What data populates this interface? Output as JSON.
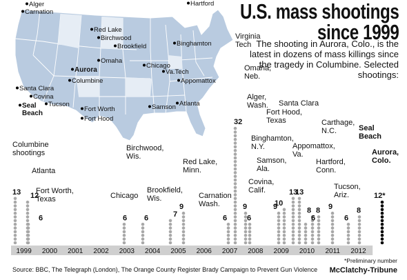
{
  "title_line1": "U.S. mass shootings",
  "title_line2": "since 1999",
  "subtitle": "The shooting in Aurora, Colo., is the latest in dozens of mass killings since the tragedy in Columbine. Selected shootings:",
  "source": "Source: BBC, The Telegraph (London), The Orange County Register Brady Campaign to Prevent Gun Violence",
  "credit": "McClatchy-Tribune",
  "footnote": "*Preliminary number",
  "colors": {
    "map_fill": "#b9cbe0",
    "map_fill_dark": "#9fb6d2",
    "dot": "#a8a8a8",
    "dot_highlight": "#000000",
    "year_band": "#cfcfcf"
  },
  "map_cities": [
    {
      "name": "Alger",
      "bold": false
    },
    {
      "name": "Carnation",
      "bold": false
    },
    {
      "name": "Red Lake",
      "bold": false
    },
    {
      "name": "Hartford",
      "bold": false
    },
    {
      "name": "Birchwood",
      "bold": false
    },
    {
      "name": "Brookfield",
      "bold": false
    },
    {
      "name": "Binghamton",
      "bold": false
    },
    {
      "name": "Aurora",
      "bold": true
    },
    {
      "name": "Omaha",
      "bold": false
    },
    {
      "name": "Chicago",
      "bold": false
    },
    {
      "name": "Columbine",
      "bold": false
    },
    {
      "name": "Va.Tech",
      "bold": false
    },
    {
      "name": "Appomattox",
      "bold": false
    },
    {
      "name": "Santa Clara",
      "bold": false
    },
    {
      "name": "Covina",
      "bold": false
    },
    {
      "name": "Tucson",
      "bold": false
    },
    {
      "name": "Seal Beach",
      "bold": true
    },
    {
      "name": "Fort Worth",
      "bold": false
    },
    {
      "name": "Samson",
      "bold": false
    },
    {
      "name": "Atlanta",
      "bold": false
    },
    {
      "name": "Fort Hood",
      "bold": false
    }
  ],
  "chart_data": {
    "type": "bar",
    "categories": [
      "1999",
      "2000",
      "2001",
      "2002",
      "2003",
      "2004",
      "2005",
      "2006",
      "2007",
      "2008",
      "2009",
      "2010",
      "2011",
      "2012"
    ],
    "series": [
      {
        "name": "Columbine shootings",
        "year": "1999",
        "value": 13,
        "label_lines": [
          "Columbine",
          "shootings"
        ],
        "count_text": "13"
      },
      {
        "name": "Atlanta",
        "year": "1999",
        "value": 12,
        "label_lines": [
          "Atlanta"
        ],
        "count_text": "12"
      },
      {
        "name": "Fort Worth, Texas",
        "year": "1999",
        "value": 6,
        "label_lines": [
          "Fort Worth,",
          "Texas"
        ],
        "count_text": "6"
      },
      {
        "name": "Chicago",
        "year": "2003",
        "value": 6,
        "label_lines": [
          "Chicago"
        ],
        "count_text": "6"
      },
      {
        "name": "Birchwood, Wis.",
        "year": "2004",
        "value": 6,
        "label_lines": [
          "Birchwood,",
          "Wis."
        ],
        "count_text": "6"
      },
      {
        "name": "Brookfield, Wis.",
        "year": "2005",
        "value": 7,
        "label_lines": [
          "Brookfield,",
          "Wis."
        ],
        "count_text": "7"
      },
      {
        "name": "Red Lake, Minn.",
        "year": "2005",
        "value": 9,
        "label_lines": [
          "Red Lake,",
          "Minn."
        ],
        "count_text": "9"
      },
      {
        "name": "Carnation Wash.",
        "year": "2006",
        "value": 6,
        "label_lines": [
          "Carnation",
          "Wash."
        ],
        "count_text": "6"
      },
      {
        "name": "Virginia Tech",
        "year": "2007",
        "value": 32,
        "label_lines": [
          "Virginia",
          "Tech"
        ],
        "count_text": "32"
      },
      {
        "name": "Omaha, Neb.",
        "year": "2007",
        "value": 9,
        "label_lines": [
          "Omaha,",
          "Neb."
        ],
        "count_text": "9"
      },
      {
        "name": "Alger, Wash.",
        "year": "2008",
        "value": 6,
        "label_lines": [
          "Alger,",
          "Wash."
        ],
        "count_text": "6"
      },
      {
        "name": "Covina, Calif.",
        "year": "2008",
        "value": 9,
        "label_lines": [
          "Covina,",
          "Calif."
        ],
        "count_text": "9"
      },
      {
        "name": "Samson, Ala.",
        "year": "2009",
        "value": 10,
        "label_lines": [
          "Samson,",
          "Ala."
        ],
        "count_text": "10"
      },
      {
        "name": "Binghamton, N.Y.",
        "year": "2009",
        "value": 13,
        "label_lines": [
          "Binghamton,",
          "N.Y."
        ],
        "count_text": "13"
      },
      {
        "name": "Fort Hood, Texas",
        "year": "2009",
        "value": 13,
        "label_lines": [
          "Fort Hood,",
          "Texas"
        ],
        "count_text": "13"
      },
      {
        "name": "Santa Clara",
        "year": "2009",
        "value": 6,
        "label_lines": [
          "Santa Clara"
        ],
        "count_text": "6"
      },
      {
        "name": "Carthage, N.C.",
        "year": "2009",
        "value": 8,
        "label_lines": [
          "Carthage,",
          "N.C."
        ],
        "count_text": "8"
      },
      {
        "name": "Appomattox, Va.",
        "year": "2010",
        "value": 8,
        "label_lines": [
          "Appomattox,",
          "Va."
        ],
        "count_text": "8"
      },
      {
        "name": "Hartford, Conn.",
        "year": "2010",
        "value": 9,
        "label_lines": [
          "Hartford,",
          "Conn."
        ],
        "count_text": "9"
      },
      {
        "name": "Tucson, Ariz.",
        "year": "2011",
        "value": 6,
        "label_lines": [
          "Tucson,",
          "Ariz."
        ],
        "count_text": "6"
      },
      {
        "name": "Seal Beach",
        "year": "2011",
        "value": 8,
        "label_lines": [
          "Seal",
          "Beach"
        ],
        "count_text": "8"
      },
      {
        "name": "Aurora, Colo.",
        "year": "2012",
        "value": 12,
        "label_lines": [
          "Aurora,",
          "Colo."
        ],
        "count_text": "12*",
        "highlight": true
      }
    ]
  }
}
